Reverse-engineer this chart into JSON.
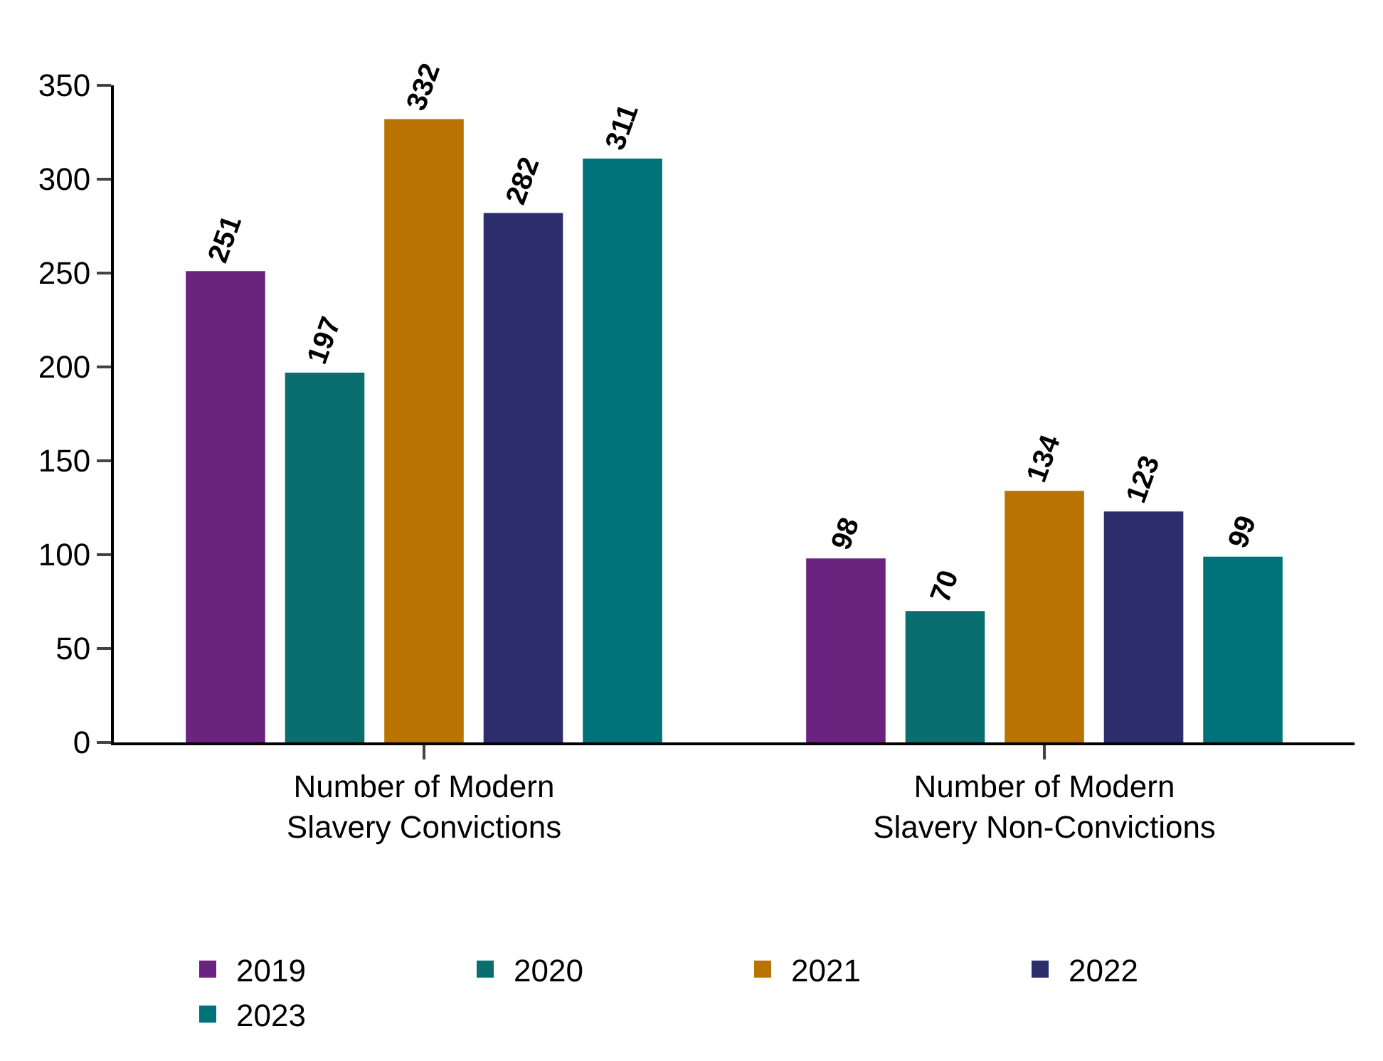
{
  "chart_data": {
    "type": "bar",
    "categories": [
      "Number of Modern Slavery Convictions",
      "Number of Modern Slavery Non-Convictions"
    ],
    "series": [
      {
        "name": "2019",
        "color": "#6b2380",
        "values": [
          251,
          98
        ]
      },
      {
        "name": "2020",
        "color": "#0b6e6e",
        "values": [
          197,
          70
        ]
      },
      {
        "name": "2021",
        "color": "#b87300",
        "values": [
          332,
          134
        ]
      },
      {
        "name": "2022",
        "color": "#2b2e6b",
        "values": [
          282,
          123
        ]
      },
      {
        "name": "2023",
        "color": "#00737a",
        "values": [
          311,
          99
        ]
      }
    ],
    "ylim": [
      0,
      350
    ],
    "yticks": [
      0,
      50,
      100,
      150,
      200,
      250,
      300,
      350
    ],
    "data_labels": true,
    "legend": "bottom"
  }
}
